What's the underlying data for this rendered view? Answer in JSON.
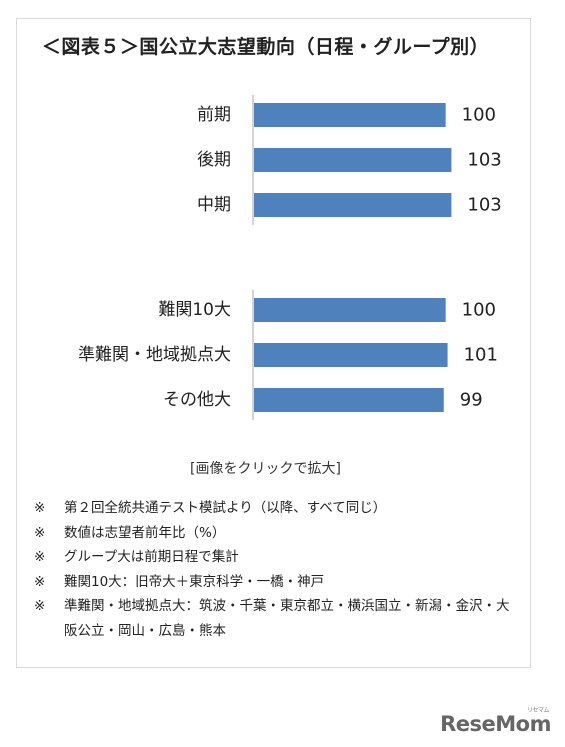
{
  "title": "＜図表５＞国公立大志望動向（日程・グループ別）",
  "chart_data": [
    {
      "type": "bar",
      "orientation": "horizontal",
      "categories": [
        "前期",
        "後期",
        "中期"
      ],
      "values": [
        100,
        103,
        103
      ],
      "xlim": [
        0,
        120
      ],
      "grid": false,
      "colors": {
        "bar": "#4f81bd",
        "axis": "#aaaaaa"
      }
    },
    {
      "type": "bar",
      "orientation": "horizontal",
      "categories": [
        "難関10大",
        "準難関・地域拠点大",
        "その他大"
      ],
      "values": [
        100,
        101,
        99
      ],
      "xlim": [
        0,
        120
      ],
      "grid": false,
      "colors": {
        "bar": "#4f81bd",
        "axis": "#aaaaaa"
      }
    }
  ],
  "caption": "[画像をクリックで拡大]",
  "notes": [
    {
      "mark": "※",
      "text": "第２回全統共通テスト模試より（以降、すべて同じ）"
    },
    {
      "mark": "※",
      "text": "数値は志望者前年比（%）"
    },
    {
      "mark": "※",
      "text": "グループ大は前期日程で集計"
    },
    {
      "mark": "※",
      "text": "難関10大：旧帝大＋東京科学・一橋・神戸"
    },
    {
      "mark": "※",
      "text": "準難関・地域拠点大：筑波・千葉・東京都立・横浜国立・新潟・金沢・大阪公立・岡山・広島・熊本"
    }
  ],
  "logo": {
    "text": "ReseMom",
    "sub": "リセマム"
  }
}
